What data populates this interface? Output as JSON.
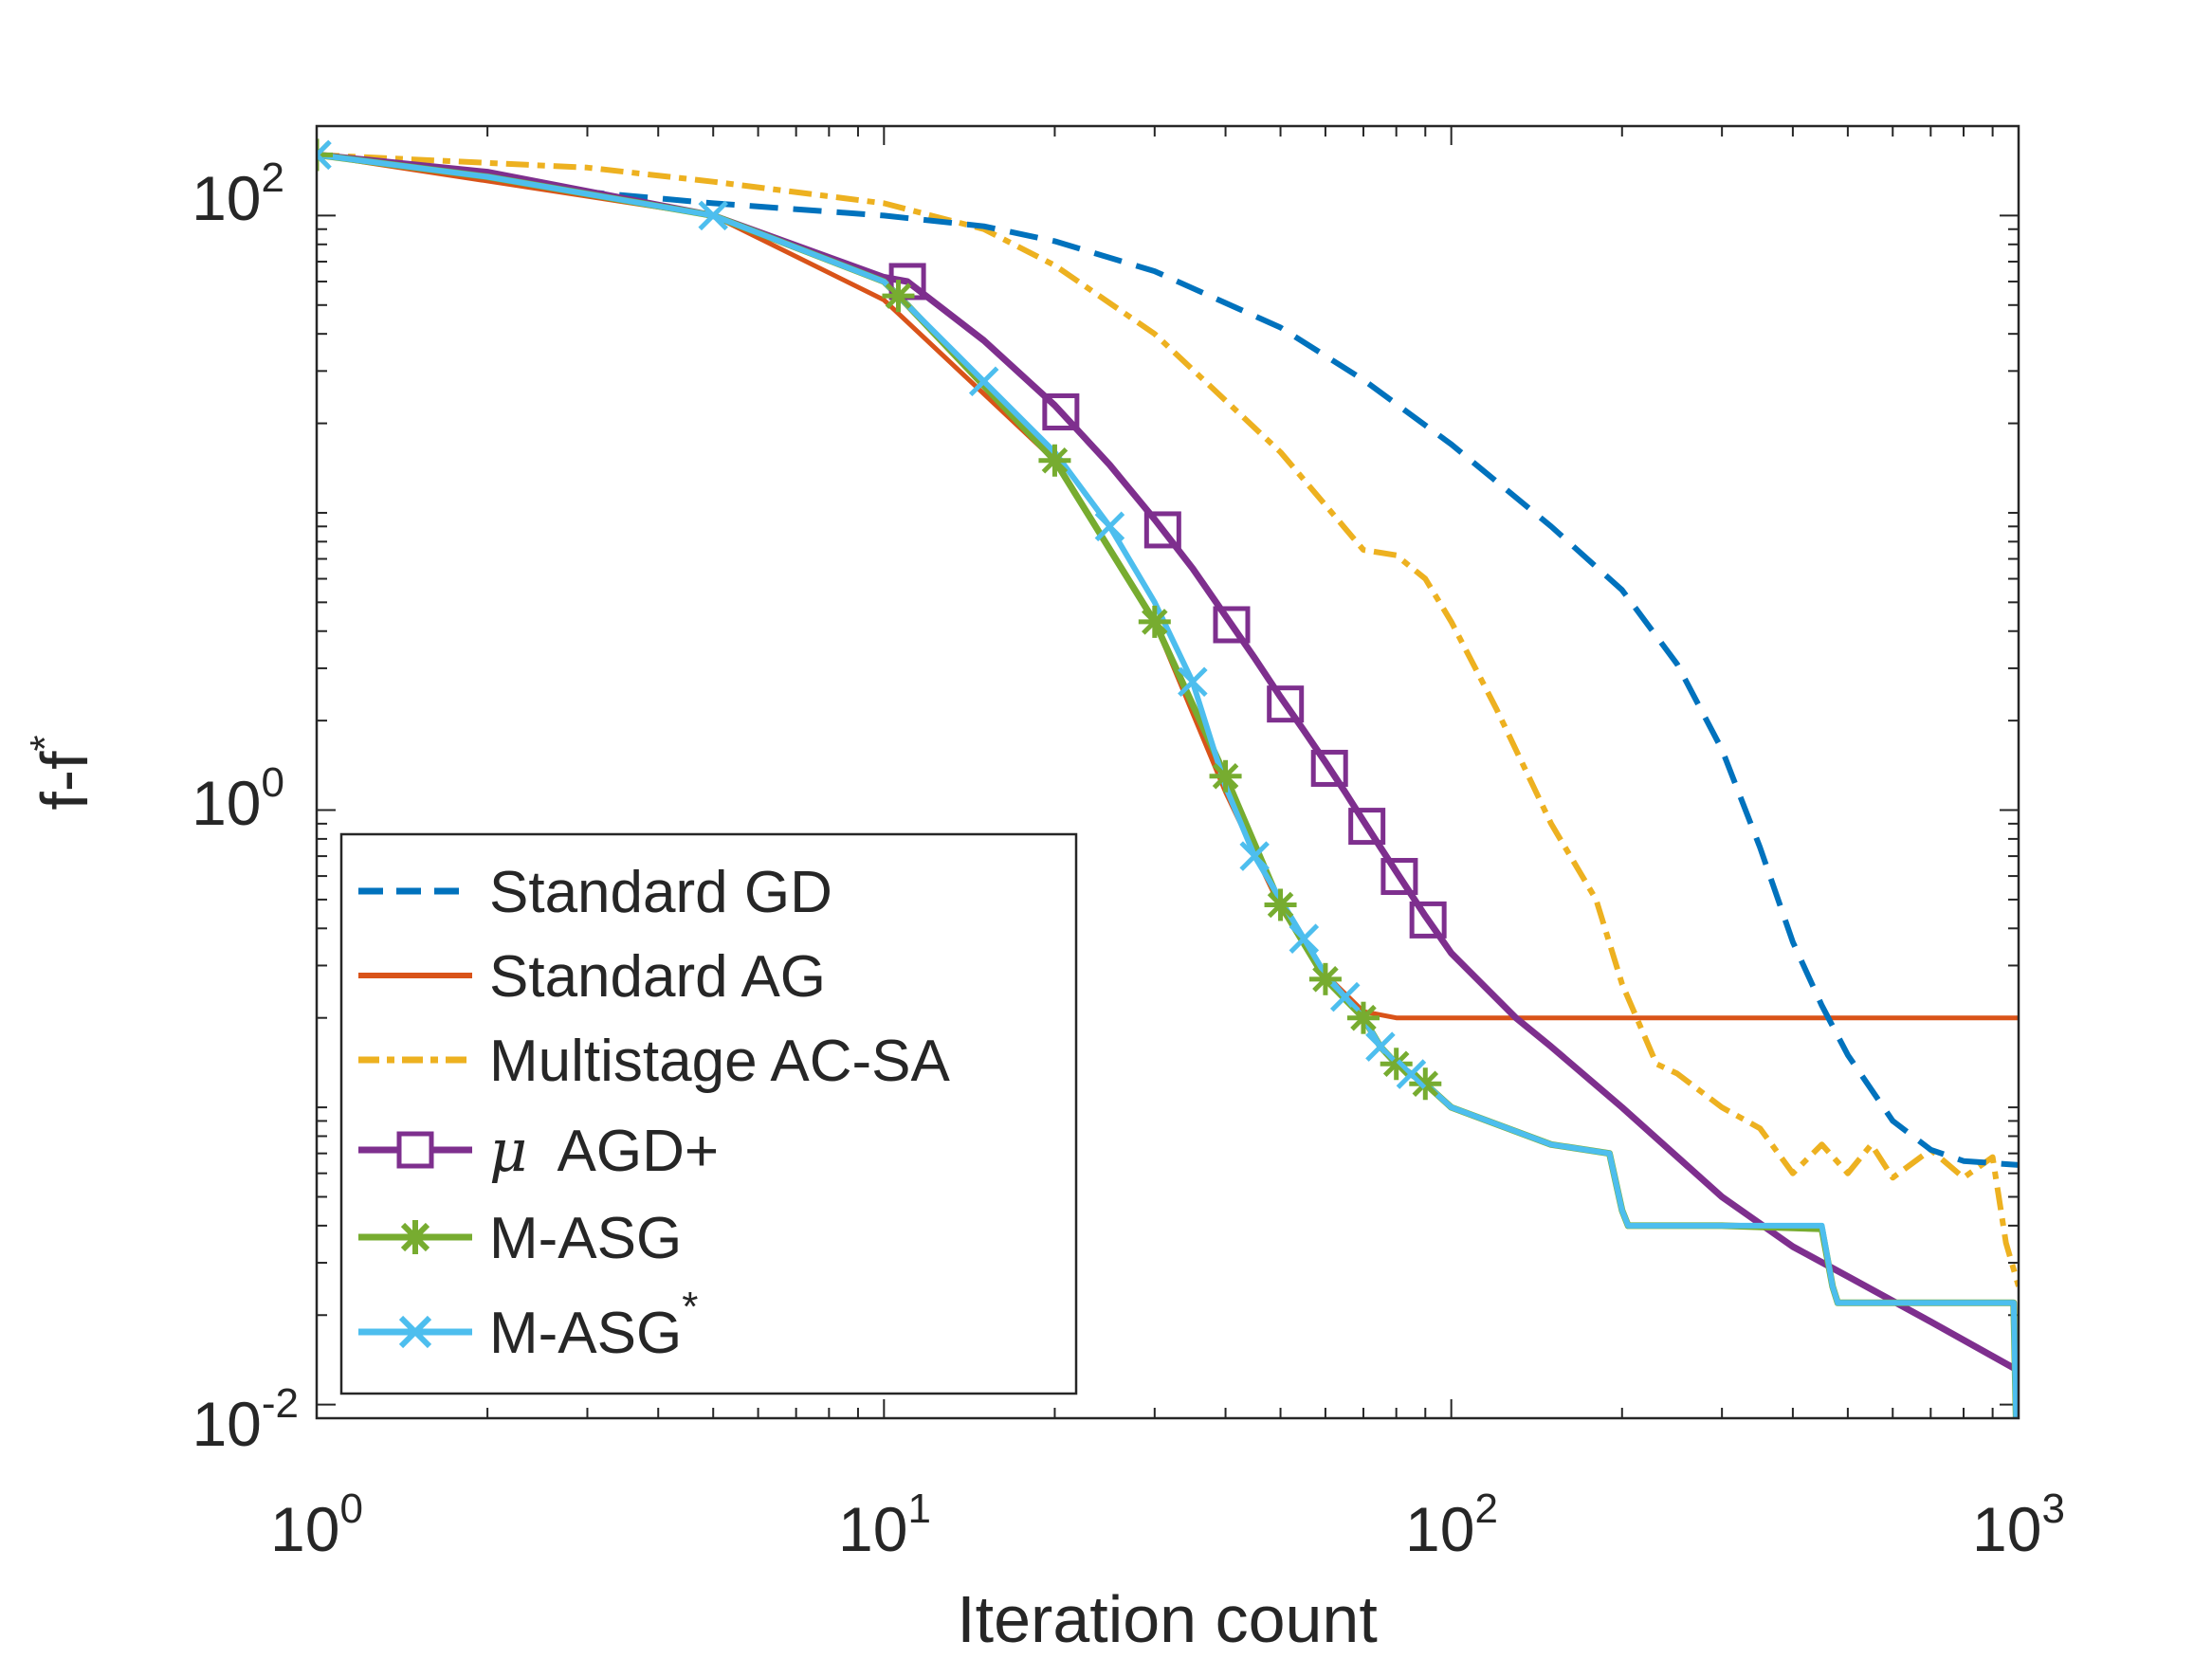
{
  "chart_data": {
    "type": "line",
    "title": "",
    "xlabel": "Iteration count",
    "ylabel": {
      "base": "f-f",
      "superscript": "*"
    },
    "xscale": "log",
    "yscale": "log",
    "xlim": [
      1,
      1000
    ],
    "ylim": [
      0.009,
      200
    ],
    "x_ticks": [
      {
        "base": "10",
        "exp": "0",
        "value": 1
      },
      {
        "base": "10",
        "exp": "1",
        "value": 10
      },
      {
        "base": "10",
        "exp": "2",
        "value": 100
      },
      {
        "base": "10",
        "exp": "3",
        "value": 1000
      }
    ],
    "y_ticks": [
      {
        "base": "10",
        "exp": "-2",
        "value": 0.01
      },
      {
        "base": "10",
        "exp": "0",
        "value": 1
      },
      {
        "base": "10",
        "exp": "2",
        "value": 100
      }
    ],
    "legend_position": "bottom-left",
    "series": [
      {
        "name": "Standard GD",
        "label": "Standard GD",
        "color": "#0072BD",
        "dash": "dashed",
        "marker": "none",
        "width": 6,
        "x": [
          1,
          2,
          3,
          5,
          10,
          15,
          20,
          30,
          50,
          70,
          100,
          150,
          200,
          250,
          300,
          350,
          400,
          450,
          500,
          600,
          700,
          800,
          1000
        ],
        "y": [
          160,
          135,
          120,
          110,
          100,
          92,
          82,
          65,
          42,
          28,
          17,
          9,
          5.5,
          3.1,
          1.6,
          0.75,
          0.36,
          0.22,
          0.15,
          0.09,
          0.072,
          0.066,
          0.064
        ]
      },
      {
        "name": "Standard AG",
        "label": "Standard AG",
        "color": "#D95319",
        "dash": "solid",
        "marker": "none",
        "width": 5,
        "x": [
          1,
          5,
          10,
          20,
          30,
          40,
          50,
          60,
          70,
          80,
          100,
          150,
          200,
          300,
          500,
          700,
          1000
        ],
        "y": [
          160,
          100,
          52,
          15,
          4.3,
          1.15,
          0.47,
          0.28,
          0.21,
          0.2,
          0.2,
          0.2,
          0.2,
          0.2,
          0.2,
          0.2,
          0.2
        ]
      },
      {
        "name": "Multistage AC-SA",
        "label": "Multistage AC-SA",
        "color": "#EDB120",
        "dash": "dashdot",
        "marker": "none",
        "width": 6,
        "x": [
          1,
          3,
          5,
          10,
          15,
          20,
          30,
          50,
          70,
          80,
          90,
          100,
          120,
          150,
          180,
          200,
          230,
          250,
          300,
          350,
          400,
          450,
          500,
          550,
          600,
          700,
          800,
          900,
          950,
          1000
        ],
        "y": [
          160,
          145,
          130,
          110,
          90,
          68,
          40,
          16,
          7.5,
          7.2,
          6,
          4.3,
          2.2,
          0.9,
          0.5,
          0.26,
          0.14,
          0.13,
          0.1,
          0.085,
          0.06,
          0.075,
          0.06,
          0.075,
          0.058,
          0.072,
          0.058,
          0.068,
          0.035,
          0.025
        ]
      },
      {
        "name": "μ AGD+",
        "label_symbol": "μ",
        "label_text": "AGD+",
        "color": "#7E2F8E",
        "dash": "solid",
        "marker": "square",
        "width": 7,
        "x": [
          1,
          2,
          5,
          10,
          11,
          15,
          20,
          25,
          30,
          35,
          40,
          45,
          50,
          55,
          60,
          65,
          70,
          75,
          80,
          85,
          90,
          95,
          100,
          130,
          150,
          200,
          300,
          400,
          500,
          700,
          1000
        ],
        "y": [
          160,
          140,
          100,
          62,
          60,
          38,
          23,
          14.5,
          9.5,
          6.5,
          4.5,
          3.25,
          2.4,
          1.85,
          1.45,
          1.15,
          0.92,
          0.75,
          0.62,
          0.52,
          0.44,
          0.38,
          0.33,
          0.2,
          0.16,
          0.1,
          0.05,
          0.034,
          0.027,
          0.019,
          0.013
        ]
      },
      {
        "name": "M-ASG",
        "label": "M-ASG",
        "color": "#77AC30",
        "dash": "solid",
        "marker": "asterisk",
        "width": 7,
        "x": [
          1,
          2,
          5,
          10,
          11,
          20,
          30,
          40,
          50,
          60,
          70,
          75,
          80,
          90,
          100,
          150,
          190,
          200,
          205,
          300,
          450,
          470,
          480,
          500,
          980,
          990,
          1000
        ],
        "y": [
          160,
          135,
          100,
          60,
          50,
          15,
          4.3,
          1.3,
          0.48,
          0.27,
          0.2,
          0.16,
          0.14,
          0.12,
          0.1,
          0.075,
          0.07,
          0.045,
          0.04,
          0.04,
          0.039,
          0.025,
          0.022,
          0.022,
          0.022,
          0.009,
          0.012
        ]
      },
      {
        "name": "M-ASG*",
        "label_base": "M-ASG",
        "label_sup": "*",
        "color": "#4DBEEE",
        "dash": "solid",
        "marker": "x",
        "width": 6,
        "x": [
          1,
          2,
          5,
          10,
          20,
          25,
          30,
          35,
          40,
          45,
          50,
          60,
          70,
          75,
          80,
          90,
          100,
          150,
          190,
          200,
          205,
          300,
          450,
          470,
          480,
          500,
          980,
          990,
          1000
        ],
        "y": [
          160,
          135,
          100,
          60,
          16,
          9,
          5,
          2.7,
          1.2,
          0.7,
          0.5,
          0.28,
          0.2,
          0.16,
          0.14,
          0.12,
          0.1,
          0.075,
          0.07,
          0.045,
          0.04,
          0.04,
          0.04,
          0.025,
          0.022,
          0.022,
          0.022,
          0.009,
          0.012
        ]
      }
    ],
    "markers": {
      "square": [
        11,
        20.5,
        31,
        41,
        51,
        61,
        71,
        81,
        91
      ],
      "asterisk": [
        1,
        10.6,
        20,
        30,
        40,
        50,
        60,
        70,
        80,
        90
      ],
      "x": [
        1,
        5,
        15,
        25,
        35,
        45,
        55,
        65,
        75,
        85
      ]
    }
  }
}
